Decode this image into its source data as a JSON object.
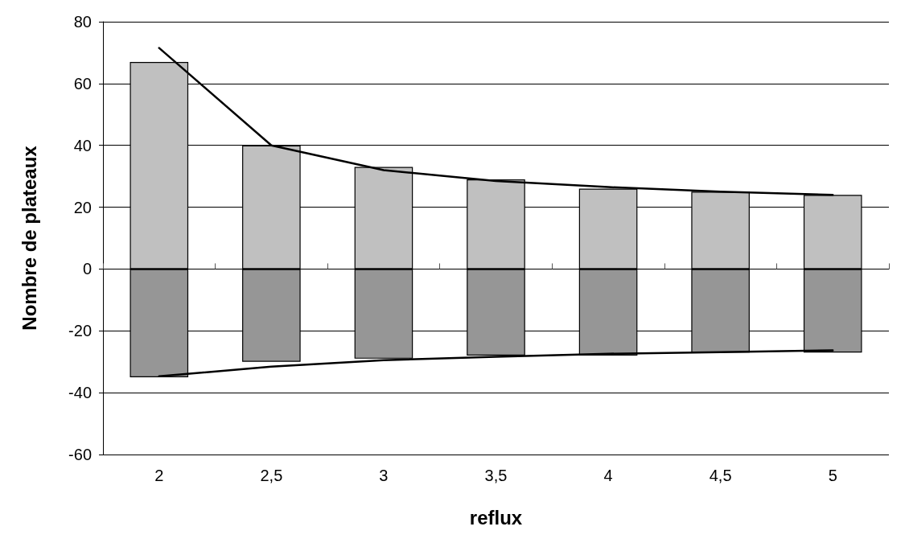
{
  "chart_data": {
    "type": "bar",
    "xlabel": "reflux",
    "ylabel": "Nombre de plateaux",
    "categories": [
      "2",
      "2,5",
      "3",
      "3,5",
      "4",
      "4,5",
      "5"
    ],
    "stacked": true,
    "series": [
      {
        "color": "#c0c0c0",
        "values": [
          67,
          40,
          33,
          29,
          26,
          25,
          24
        ]
      },
      {
        "color": "#969696",
        "values": [
          -35,
          -30,
          -29,
          -28,
          -28,
          -27,
          -27
        ]
      },
      {
        "type": "line",
        "color": "#000000",
        "values": [
          71.5,
          40,
          32,
          28.5,
          26.5,
          25,
          24
        ]
      },
      {
        "type": "line",
        "color": "#000000",
        "values": [
          -34.7,
          -31.6,
          -29.5,
          -28.4,
          -27.4,
          -26.9,
          -26.3
        ]
      }
    ],
    "ylim": [
      -60,
      80
    ],
    "yticks": [
      -60,
      -40,
      -20,
      0,
      20,
      40,
      60,
      80
    ],
    "grid": "y",
    "marker": "none",
    "line_style": "solid"
  }
}
